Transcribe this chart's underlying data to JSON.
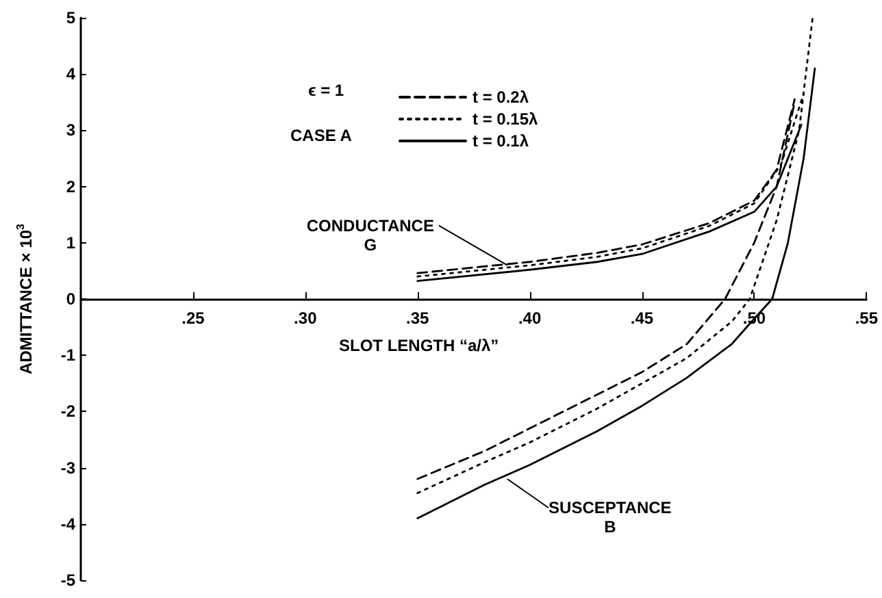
{
  "chart_data": {
    "type": "line",
    "xlabel": "SLOT LENGTH “a/λ”",
    "ylabel": "ADMITTANCE × 10$^{3}$",
    "xlim": [
      0.2,
      0.55
    ],
    "ylim": [
      -5,
      5
    ],
    "xticks": [
      {
        "value": 0.25,
        "label": ".25"
      },
      {
        "value": 0.3,
        "label": ".30"
      },
      {
        "value": 0.35,
        "label": ".35"
      },
      {
        "value": 0.4,
        "label": ".40"
      },
      {
        "value": 0.45,
        "label": ".45"
      },
      {
        "value": 0.5,
        "label": ".50"
      },
      {
        "value": 0.55,
        "label": ".55"
      }
    ],
    "yticks": [
      -5,
      -4,
      -3,
      -2,
      -1,
      0,
      1,
      2,
      3,
      4,
      5
    ],
    "grid": false,
    "legend": "top",
    "marker": "none",
    "annotations": [
      "ϵ = 1",
      "CASE A",
      {
        "text": "CONDUCTANCE\nG",
        "x": 0.39,
        "y": 0.6
      },
      {
        "text": "SUSCEPTANCE\nB",
        "x": 0.39,
        "y": -3.2
      }
    ],
    "series": [
      {
        "name": "t = 0.2λ",
        "color": "#000000",
        "line_style": "dashed",
        "x": [
          0.35,
          0.4,
          0.43,
          0.45,
          0.48,
          0.5,
          0.51,
          0.518
        ],
        "values": [
          0.46,
          0.66,
          0.82,
          0.97,
          1.35,
          1.75,
          2.3,
          3.55
        ]
      },
      {
        "name": "t = 0.15λ",
        "color": "#000000",
        "line_style": "dotted",
        "x": [
          0.35,
          0.4,
          0.43,
          0.45,
          0.48,
          0.5,
          0.512,
          0.522
        ],
        "values": [
          0.4,
          0.6,
          0.75,
          0.9,
          1.3,
          1.7,
          2.4,
          3.65
        ]
      },
      {
        "name": "t = 0.1λ",
        "color": "#000000",
        "line_style": "solid",
        "x": [
          0.35,
          0.4,
          0.43,
          0.45,
          0.48,
          0.5,
          0.51,
          0.521
        ],
        "values": [
          0.32,
          0.52,
          0.66,
          0.8,
          1.2,
          1.55,
          2.0,
          3.1
        ]
      },
      {
        "color": "#000000",
        "line_style": "dashed",
        "x": [
          0.35,
          0.38,
          0.4,
          0.43,
          0.45,
          0.47,
          0.487,
          0.5,
          0.51,
          0.518
        ],
        "values": [
          -3.2,
          -2.7,
          -2.3,
          -1.7,
          -1.3,
          -0.8,
          0,
          1.0,
          2.0,
          3.5
        ]
      },
      {
        "color": "#000000",
        "line_style": "dotted",
        "x": [
          0.35,
          0.38,
          0.4,
          0.43,
          0.45,
          0.47,
          0.49,
          0.498,
          0.51,
          0.52,
          0.526
        ],
        "values": [
          -3.45,
          -2.9,
          -2.55,
          -1.95,
          -1.5,
          -1.05,
          -0.4,
          0,
          1.4,
          3.0,
          5.0
        ]
      },
      {
        "color": "#000000",
        "line_style": "solid",
        "x": [
          0.35,
          0.38,
          0.4,
          0.43,
          0.45,
          0.47,
          0.49,
          0.5,
          0.508,
          0.515,
          0.522,
          0.527
        ],
        "values": [
          -3.9,
          -3.3,
          -2.95,
          -2.35,
          -1.9,
          -1.4,
          -0.8,
          -0.35,
          0,
          1.0,
          2.5,
          4.1
        ]
      }
    ]
  }
}
